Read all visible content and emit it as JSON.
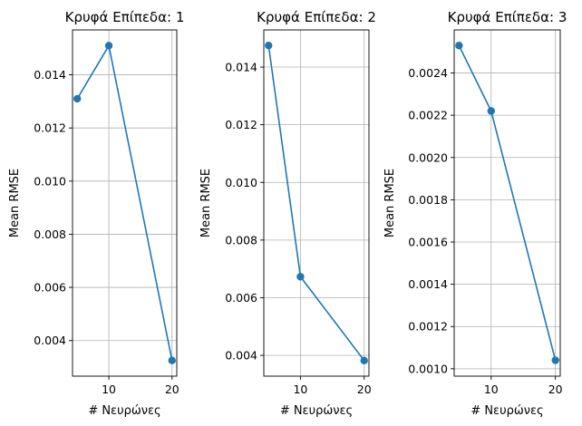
{
  "chart_data": [
    {
      "type": "line",
      "title": "Κρυφά Επίπεδα: 1",
      "xlabel": "# Νευρώνες",
      "ylabel": "Mean RMSE",
      "x": [
        5,
        10,
        20
      ],
      "series": [
        {
          "values": [
            0.0131,
            0.0151,
            0.00325
          ]
        }
      ],
      "xlim": [
        4.25,
        20.75
      ],
      "ylim": [
        0.00266,
        0.01569
      ],
      "xticks": [
        10,
        20
      ],
      "xtick_labels": [
        "10",
        "20"
      ],
      "yticks": [
        0.004,
        0.006,
        0.008,
        0.01,
        0.012,
        0.014
      ],
      "ytick_labels": [
        "0.004",
        "0.006",
        "0.008",
        "0.010",
        "0.012",
        "0.014"
      ],
      "grid": true,
      "color": "#1f77b4"
    },
    {
      "type": "line",
      "title": "Κρυφά Επίπεδα: 2",
      "xlabel": "# Νευρώνες",
      "ylabel": "Mean RMSE",
      "x": [
        5,
        10,
        20
      ],
      "series": [
        {
          "values": [
            0.01475,
            0.00673,
            0.00382
          ]
        }
      ],
      "xlim": [
        4.25,
        20.75
      ],
      "ylim": [
        0.00328,
        0.01529
      ],
      "xticks": [
        10,
        20
      ],
      "xtick_labels": [
        "10",
        "20"
      ],
      "yticks": [
        0.004,
        0.006,
        0.008,
        0.01,
        0.012,
        0.014
      ],
      "ytick_labels": [
        "0.004",
        "0.006",
        "0.008",
        "0.010",
        "0.012",
        "0.014"
      ],
      "grid": true,
      "color": "#1f77b4"
    },
    {
      "type": "line",
      "title": "Κρυφά Επίπεδα: 3",
      "xlabel": "# Νευρώνες",
      "ylabel": "Mean RMSE",
      "x": [
        5,
        10,
        20
      ],
      "series": [
        {
          "values": [
            0.00253,
            0.00222,
            0.00104
          ]
        }
      ],
      "xlim": [
        4.25,
        20.75
      ],
      "ylim": [
        0.000965,
        0.002604
      ],
      "xticks": [
        10,
        20
      ],
      "xtick_labels": [
        "10",
        "20"
      ],
      "yticks": [
        0.001,
        0.0012,
        0.0014,
        0.0016,
        0.0018,
        0.002,
        0.0022,
        0.0024
      ],
      "ytick_labels": [
        "0.0010",
        "0.0012",
        "0.0014",
        "0.0016",
        "0.0018",
        "0.0020",
        "0.0022",
        "0.0024"
      ],
      "grid": true,
      "color": "#1f77b4"
    }
  ]
}
